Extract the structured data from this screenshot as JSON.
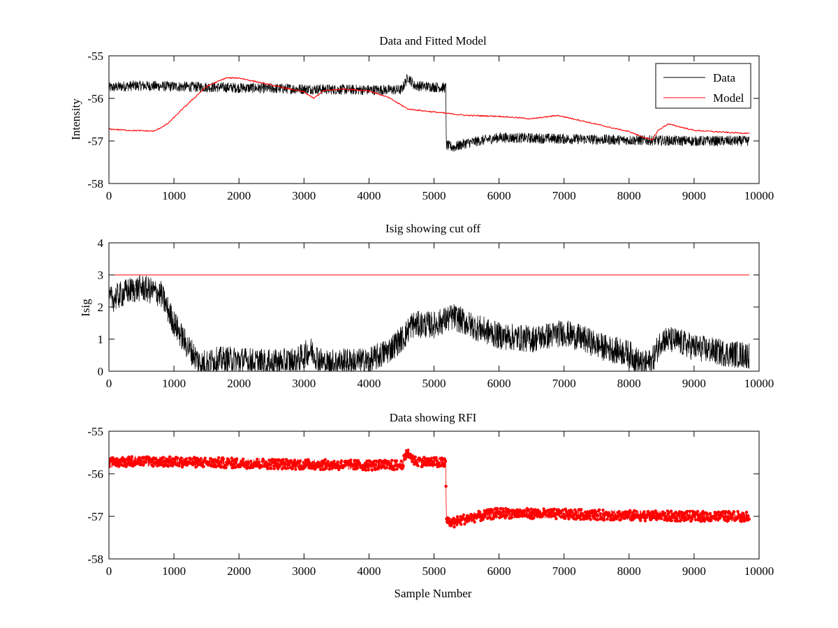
{
  "chart_data": [
    {
      "type": "line",
      "title": "Data and Fitted Model",
      "xlabel": "",
      "ylabel": "Intensity",
      "xlim": [
        0,
        10000
      ],
      "ylim": [
        -58,
        -55
      ],
      "xticks": [
        0,
        1000,
        2000,
        3000,
        4000,
        5000,
        6000,
        7000,
        8000,
        9000,
        10000
      ],
      "yticks": [
        -58,
        -57,
        -56,
        -55
      ],
      "grid": false,
      "legend_position": "top-right",
      "series": [
        {
          "name": "Data",
          "color": "#000000",
          "style": "noisy-line",
          "noise_amplitude": 0.12,
          "x": [
            0,
            200,
            400,
            1000,
            2000,
            3000,
            4000,
            4500,
            4600,
            4700,
            5180,
            5190,
            5300,
            5500,
            6000,
            7000,
            8000,
            9000,
            9850
          ],
          "y": [
            -55.75,
            -55.72,
            -55.7,
            -55.72,
            -55.75,
            -55.78,
            -55.8,
            -55.8,
            -55.5,
            -55.7,
            -55.75,
            -57.1,
            -57.15,
            -57.05,
            -56.92,
            -56.95,
            -56.98,
            -57.0,
            -57.0
          ]
        },
        {
          "name": "Model",
          "color": "#ff0000",
          "style": "line",
          "noise_amplitude": 0.015,
          "x": [
            0,
            300,
            700,
            900,
            1200,
            1500,
            1800,
            2000,
            2300,
            2600,
            3000,
            3150,
            3300,
            3600,
            4000,
            4300,
            4600,
            5000,
            5500,
            6000,
            6500,
            6900,
            7200,
            7700,
            8000,
            8200,
            8350,
            8450,
            8600,
            9000,
            9500,
            9850
          ],
          "y": [
            -56.72,
            -56.75,
            -56.77,
            -56.6,
            -56.15,
            -55.72,
            -55.52,
            -55.52,
            -55.62,
            -55.72,
            -55.85,
            -56.0,
            -55.82,
            -55.78,
            -55.82,
            -55.98,
            -56.25,
            -56.32,
            -56.4,
            -56.42,
            -56.48,
            -56.4,
            -56.5,
            -56.68,
            -56.78,
            -56.9,
            -56.98,
            -56.75,
            -56.6,
            -56.75,
            -56.8,
            -56.82
          ]
        }
      ]
    },
    {
      "type": "line",
      "title": "Isig showing cut off",
      "xlabel": "",
      "ylabel": "Isig",
      "xlim": [
        0,
        10000
      ],
      "ylim": [
        0,
        4
      ],
      "xticks": [
        0,
        1000,
        2000,
        3000,
        4000,
        5000,
        6000,
        7000,
        8000,
        9000,
        10000
      ],
      "yticks": [
        0,
        1,
        2,
        3,
        4
      ],
      "grid": false,
      "series": [
        {
          "color": "#000000",
          "style": "noisy-line",
          "noise_amplitude": 0.42,
          "floor": 0,
          "x": [
            0,
            300,
            500,
            800,
            1000,
            1200,
            1400,
            1700,
            2000,
            2500,
            2900,
            3100,
            3300,
            3600,
            4000,
            4300,
            4550,
            4650,
            5000,
            5300,
            5600,
            6000,
            6500,
            7000,
            7300,
            7600,
            8000,
            8200,
            8350,
            8500,
            8700,
            9000,
            9500,
            9850
          ],
          "y": [
            2.2,
            2.5,
            2.6,
            2.4,
            1.5,
            0.8,
            0.25,
            0.35,
            0.35,
            0.25,
            0.35,
            0.65,
            0.25,
            0.3,
            0.3,
            0.65,
            1.1,
            1.45,
            1.45,
            1.7,
            1.4,
            1.1,
            1.0,
            1.2,
            1.0,
            0.75,
            0.55,
            0.2,
            0.3,
            1.0,
            0.95,
            0.75,
            0.55,
            0.5
          ]
        },
        {
          "color": "#ff0000",
          "style": "line",
          "noise_amplitude": 0,
          "x": [
            0,
            9850
          ],
          "y": [
            3,
            3
          ]
        }
      ]
    },
    {
      "type": "line",
      "title": "Data showing RFI",
      "xlabel": "Sample Number",
      "ylabel": "",
      "xlim": [
        0,
        10000
      ],
      "ylim": [
        -58,
        -55
      ],
      "xticks": [
        0,
        1000,
        2000,
        3000,
        4000,
        5000,
        6000,
        7000,
        8000,
        9000,
        10000
      ],
      "yticks": [
        -58,
        -57,
        -56,
        -55
      ],
      "grid": false,
      "series": [
        {
          "color": "#ff0000",
          "style": "noisy-line-with-markers",
          "noise_amplitude": 0.12,
          "x": [
            0,
            200,
            400,
            1000,
            2000,
            3000,
            4000,
            4500,
            4600,
            4700,
            5180,
            5190,
            5300,
            5500,
            6000,
            7000,
            8000,
            9000,
            9850
          ],
          "y": [
            -55.75,
            -55.72,
            -55.7,
            -55.72,
            -55.75,
            -55.78,
            -55.8,
            -55.8,
            -55.5,
            -55.7,
            -55.75,
            -57.1,
            -57.15,
            -57.05,
            -56.92,
            -56.95,
            -56.98,
            -57.0,
            -57.0
          ]
        }
      ]
    }
  ]
}
